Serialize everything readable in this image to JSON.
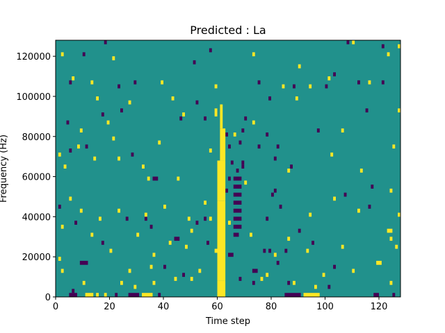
{
  "chart_data": {
    "type": "heatmap",
    "title": "Predicted : La",
    "xlabel": "Time step",
    "ylabel": "Frequency (Hz)",
    "xlim": [
      0,
      128
    ],
    "ylim": [
      0,
      128000
    ],
    "x_ticks": [
      {
        "value": 0,
        "label": "0"
      },
      {
        "value": 20,
        "label": "20"
      },
      {
        "value": 40,
        "label": "40"
      },
      {
        "value": 60,
        "label": "60"
      },
      {
        "value": 80,
        "label": "80"
      },
      {
        "value": 100,
        "label": "100"
      },
      {
        "value": 120,
        "label": "120"
      }
    ],
    "y_ticks": [
      {
        "value": 0,
        "label": "0"
      },
      {
        "value": 20000,
        "label": "20000"
      },
      {
        "value": 40000,
        "label": "40000"
      },
      {
        "value": 60000,
        "label": "60000"
      },
      {
        "value": 80000,
        "label": "80000"
      },
      {
        "value": 100000,
        "label": "100000"
      },
      {
        "value": 120000,
        "label": "120000"
      }
    ],
    "grid": false,
    "colormap": "viridis",
    "colors": {
      "background": "#21918c",
      "low": "#440154",
      "high": "#fde725"
    },
    "background_value": 0,
    "cell_height_hz": 2000,
    "low_cells": [
      {
        "t": 5,
        "f": 0,
        "w": 3
      },
      {
        "t": 6,
        "f": 2000
      },
      {
        "t": 85,
        "f": 0,
        "w": 6
      },
      {
        "t": 27,
        "f": 0,
        "w": 4
      },
      {
        "t": 22,
        "f": 0
      },
      {
        "t": 38,
        "f": 0
      },
      {
        "t": 118,
        "f": 0,
        "w": 2
      },
      {
        "t": 125,
        "f": 0
      },
      {
        "t": 86,
        "f": 6000
      },
      {
        "t": 73,
        "f": 6000
      },
      {
        "t": 101,
        "f": 4000
      },
      {
        "t": 68,
        "f": 8000
      },
      {
        "t": 47,
        "f": 10000
      },
      {
        "t": 9,
        "f": 16000,
        "w": 3
      },
      {
        "t": 73,
        "f": 12000,
        "w": 2
      },
      {
        "t": 103,
        "f": 14000
      },
      {
        "t": 77,
        "f": 22000
      },
      {
        "t": 64,
        "f": 20000,
        "w": 2
      },
      {
        "t": 95,
        "f": 26000
      },
      {
        "t": 17,
        "f": 26000
      },
      {
        "t": 44,
        "f": 28000,
        "w": 2
      },
      {
        "t": 56,
        "f": 26000
      },
      {
        "t": 66,
        "f": 30000,
        "w": 2
      },
      {
        "t": 79,
        "f": 22000
      },
      {
        "t": 7,
        "f": 36000
      },
      {
        "t": 35,
        "f": 34000
      },
      {
        "t": 52,
        "f": 36000
      },
      {
        "t": 66,
        "f": 34000,
        "w": 3
      },
      {
        "t": 90,
        "f": 32000
      },
      {
        "t": 55,
        "f": 38000
      },
      {
        "t": 66,
        "f": 38000,
        "w": 3
      },
      {
        "t": 78,
        "f": 38000
      },
      {
        "t": 1,
        "f": 44000
      },
      {
        "t": 26,
        "f": 38000
      },
      {
        "t": 33,
        "f": 38000
      },
      {
        "t": 66,
        "f": 42000,
        "w": 3
      },
      {
        "t": 83,
        "f": 44000
      },
      {
        "t": 116,
        "f": 44000
      },
      {
        "t": 66,
        "f": 46000,
        "w": 3
      },
      {
        "t": 66,
        "f": 50000,
        "w": 3
      },
      {
        "t": 81,
        "f": 52000
      },
      {
        "t": 107,
        "f": 50000
      },
      {
        "t": 63,
        "f": 52000
      },
      {
        "t": 36,
        "f": 58000,
        "w": 2
      },
      {
        "t": 66,
        "f": 54000,
        "w": 3
      },
      {
        "t": 80,
        "f": 50000
      },
      {
        "t": 117,
        "f": 54000
      },
      {
        "t": 64,
        "f": 58000
      },
      {
        "t": 66,
        "f": 58000,
        "w": 3
      },
      {
        "t": 67,
        "f": 62000
      },
      {
        "t": 69,
        "f": 64000
      },
      {
        "t": 87,
        "f": 64000
      },
      {
        "t": 65,
        "f": 66000
      },
      {
        "t": 81,
        "f": 68000
      },
      {
        "t": 5,
        "f": 72000
      },
      {
        "t": 11,
        "f": 74000
      },
      {
        "t": 69,
        "f": 66000
      },
      {
        "t": 28,
        "f": 70000
      },
      {
        "t": 64,
        "f": 74000
      },
      {
        "t": 75,
        "f": 74000
      },
      {
        "t": 63,
        "f": 80000
      },
      {
        "t": 68,
        "f": 76000
      },
      {
        "t": 69,
        "f": 82000
      },
      {
        "t": 97,
        "f": 82000
      },
      {
        "t": 78,
        "f": 80000
      },
      {
        "t": 82,
        "f": 74000
      },
      {
        "t": 4,
        "f": 86000
      },
      {
        "t": 17,
        "f": 90000
      },
      {
        "t": 46,
        "f": 88000
      },
      {
        "t": 55,
        "f": 88000
      },
      {
        "t": 70,
        "f": 88000
      },
      {
        "t": 115,
        "f": 92000
      },
      {
        "t": 24,
        "f": 92000
      },
      {
        "t": 52,
        "f": 96000
      },
      {
        "t": 79,
        "f": 98000
      },
      {
        "t": 5,
        "f": 106000
      },
      {
        "t": 23,
        "f": 104000
      },
      {
        "t": 29,
        "f": 106000
      },
      {
        "t": 75,
        "f": 106000
      },
      {
        "t": 88,
        "f": 104000
      },
      {
        "t": 100,
        "f": 104000
      },
      {
        "t": 103,
        "f": 110000
      },
      {
        "t": 121,
        "f": 106000
      },
      {
        "t": 112,
        "f": 106000
      },
      {
        "t": 10,
        "f": 120000
      },
      {
        "t": 18,
        "f": 126000
      },
      {
        "t": 51,
        "f": 116000
      },
      {
        "t": 57,
        "f": 122000
      },
      {
        "t": 108,
        "f": 126000
      },
      {
        "t": 121,
        "f": 124000
      },
      {
        "t": 82,
        "f": 16000
      },
      {
        "t": 85,
        "f": 22000
      },
      {
        "t": 60,
        "f": 38000
      },
      {
        "t": 40,
        "f": 14000
      }
    ],
    "high_cells": [
      {
        "t": 60,
        "f": 0,
        "w": 3,
        "h": 4
      },
      {
        "t": 60,
        "f": 8000,
        "w": 3,
        "h": 20
      },
      {
        "t": 60,
        "f": 48000,
        "w": 3,
        "h": 10
      },
      {
        "t": 61,
        "f": 68000,
        "w": 2,
        "h": 8
      },
      {
        "t": 61,
        "f": 84000,
        "w": 1,
        "h": 6
      },
      {
        "t": 59,
        "f": 90000,
        "w": 1,
        "h": 2
      },
      {
        "t": 92,
        "f": 0,
        "w": 6
      },
      {
        "t": 11,
        "f": 0,
        "w": 3
      },
      {
        "t": 18,
        "f": 0
      },
      {
        "t": 32,
        "f": 0,
        "w": 4
      },
      {
        "t": 15,
        "f": 0
      },
      {
        "t": 29,
        "f": 4000
      },
      {
        "t": 10,
        "f": 6000
      },
      {
        "t": 24,
        "f": 6000
      },
      {
        "t": 36,
        "f": 6000
      },
      {
        "t": 44,
        "f": 8000
      },
      {
        "t": 50,
        "f": 8000
      },
      {
        "t": 76,
        "f": 8000
      },
      {
        "t": 88,
        "f": 6000
      },
      {
        "t": 96,
        "f": 4000
      },
      {
        "t": 124,
        "f": 6000
      },
      {
        "t": 2,
        "f": 12000
      },
      {
        "t": 27,
        "f": 12000
      },
      {
        "t": 35,
        "f": 14000
      },
      {
        "t": 53,
        "f": 12000
      },
      {
        "t": 78,
        "f": 10000
      },
      {
        "t": 99,
        "f": 10000
      },
      {
        "t": 110,
        "f": 12000
      },
      {
        "t": 119,
        "f": 16000,
        "w": 2
      },
      {
        "t": 20,
        "f": 22000
      },
      {
        "t": 36,
        "f": 20000
      },
      {
        "t": 48,
        "f": 24000
      },
      {
        "t": 59,
        "f": 22000
      },
      {
        "t": 93,
        "f": 22000
      },
      {
        "t": 106,
        "f": 24000
      },
      {
        "t": 124,
        "f": 28000
      },
      {
        "t": 126,
        "f": 24000
      },
      {
        "t": 13,
        "f": 30000
      },
      {
        "t": 42,
        "f": 26000
      },
      {
        "t": 50,
        "f": 32000
      },
      {
        "t": 72,
        "f": 30000
      },
      {
        "t": 86,
        "f": 28000
      },
      {
        "t": 123,
        "f": 32000,
        "w": 2
      },
      {
        "t": 2,
        "f": 34000
      },
      {
        "t": 16,
        "f": 38000
      },
      {
        "t": 33,
        "f": 40000
      },
      {
        "t": 49,
        "f": 38000
      },
      {
        "t": 57,
        "f": 38000
      },
      {
        "t": 64,
        "f": 36000
      },
      {
        "t": 9,
        "f": 42000
      },
      {
        "t": 23,
        "f": 42000
      },
      {
        "t": 40,
        "f": 44000
      },
      {
        "t": 94,
        "f": 40000
      },
      {
        "t": 112,
        "f": 42000
      },
      {
        "t": 127,
        "f": 40000
      },
      {
        "t": 5,
        "f": 48000
      },
      {
        "t": 55,
        "f": 46000
      },
      {
        "t": 103,
        "f": 48000
      },
      {
        "t": 124,
        "f": 52000
      },
      {
        "t": 34,
        "f": 58000
      },
      {
        "t": 45,
        "f": 58000
      },
      {
        "t": 70,
        "f": 56000
      },
      {
        "t": 113,
        "f": 62000
      },
      {
        "t": 3,
        "f": 64000
      },
      {
        "t": 32,
        "f": 64000
      },
      {
        "t": 86,
        "f": 62000
      },
      {
        "t": 1,
        "f": 70000
      },
      {
        "t": 8,
        "f": 74000
      },
      {
        "t": 14,
        "f": 68000
      },
      {
        "t": 23,
        "f": 68000
      },
      {
        "t": 57,
        "f": 72000
      },
      {
        "t": 102,
        "f": 70000
      },
      {
        "t": 125,
        "f": 74000
      },
      {
        "t": 9,
        "f": 82000
      },
      {
        "t": 21,
        "f": 78000
      },
      {
        "t": 38,
        "f": 76000
      },
      {
        "t": 66,
        "f": 80000
      },
      {
        "t": 106,
        "f": 82000
      },
      {
        "t": 19,
        "f": 86000
      },
      {
        "t": 47,
        "f": 90000
      },
      {
        "t": 73,
        "f": 86000
      },
      {
        "t": 127,
        "f": 92000
      },
      {
        "t": 15,
        "f": 98000
      },
      {
        "t": 27,
        "f": 96000
      },
      {
        "t": 43,
        "f": 98000
      },
      {
        "t": 89,
        "f": 98000
      },
      {
        "t": 6,
        "f": 108000
      },
      {
        "t": 13,
        "f": 106000
      },
      {
        "t": 39,
        "f": 106000
      },
      {
        "t": 59,
        "f": 104000
      },
      {
        "t": 84,
        "f": 104000
      },
      {
        "t": 94,
        "f": 104000
      },
      {
        "t": 116,
        "f": 106000
      },
      {
        "t": 2,
        "f": 120000
      },
      {
        "t": 21,
        "f": 118000
      },
      {
        "t": 73,
        "f": 120000
      },
      {
        "t": 90,
        "f": 114000
      },
      {
        "t": 101,
        "f": 108000
      },
      {
        "t": 110,
        "f": 126000
      },
      {
        "t": 123,
        "f": 120000
      },
      {
        "t": 127,
        "f": 124000
      },
      {
        "t": 1,
        "f": 18000
      },
      {
        "t": 30,
        "f": 30000
      },
      {
        "t": 81,
        "f": 20000
      }
    ]
  }
}
